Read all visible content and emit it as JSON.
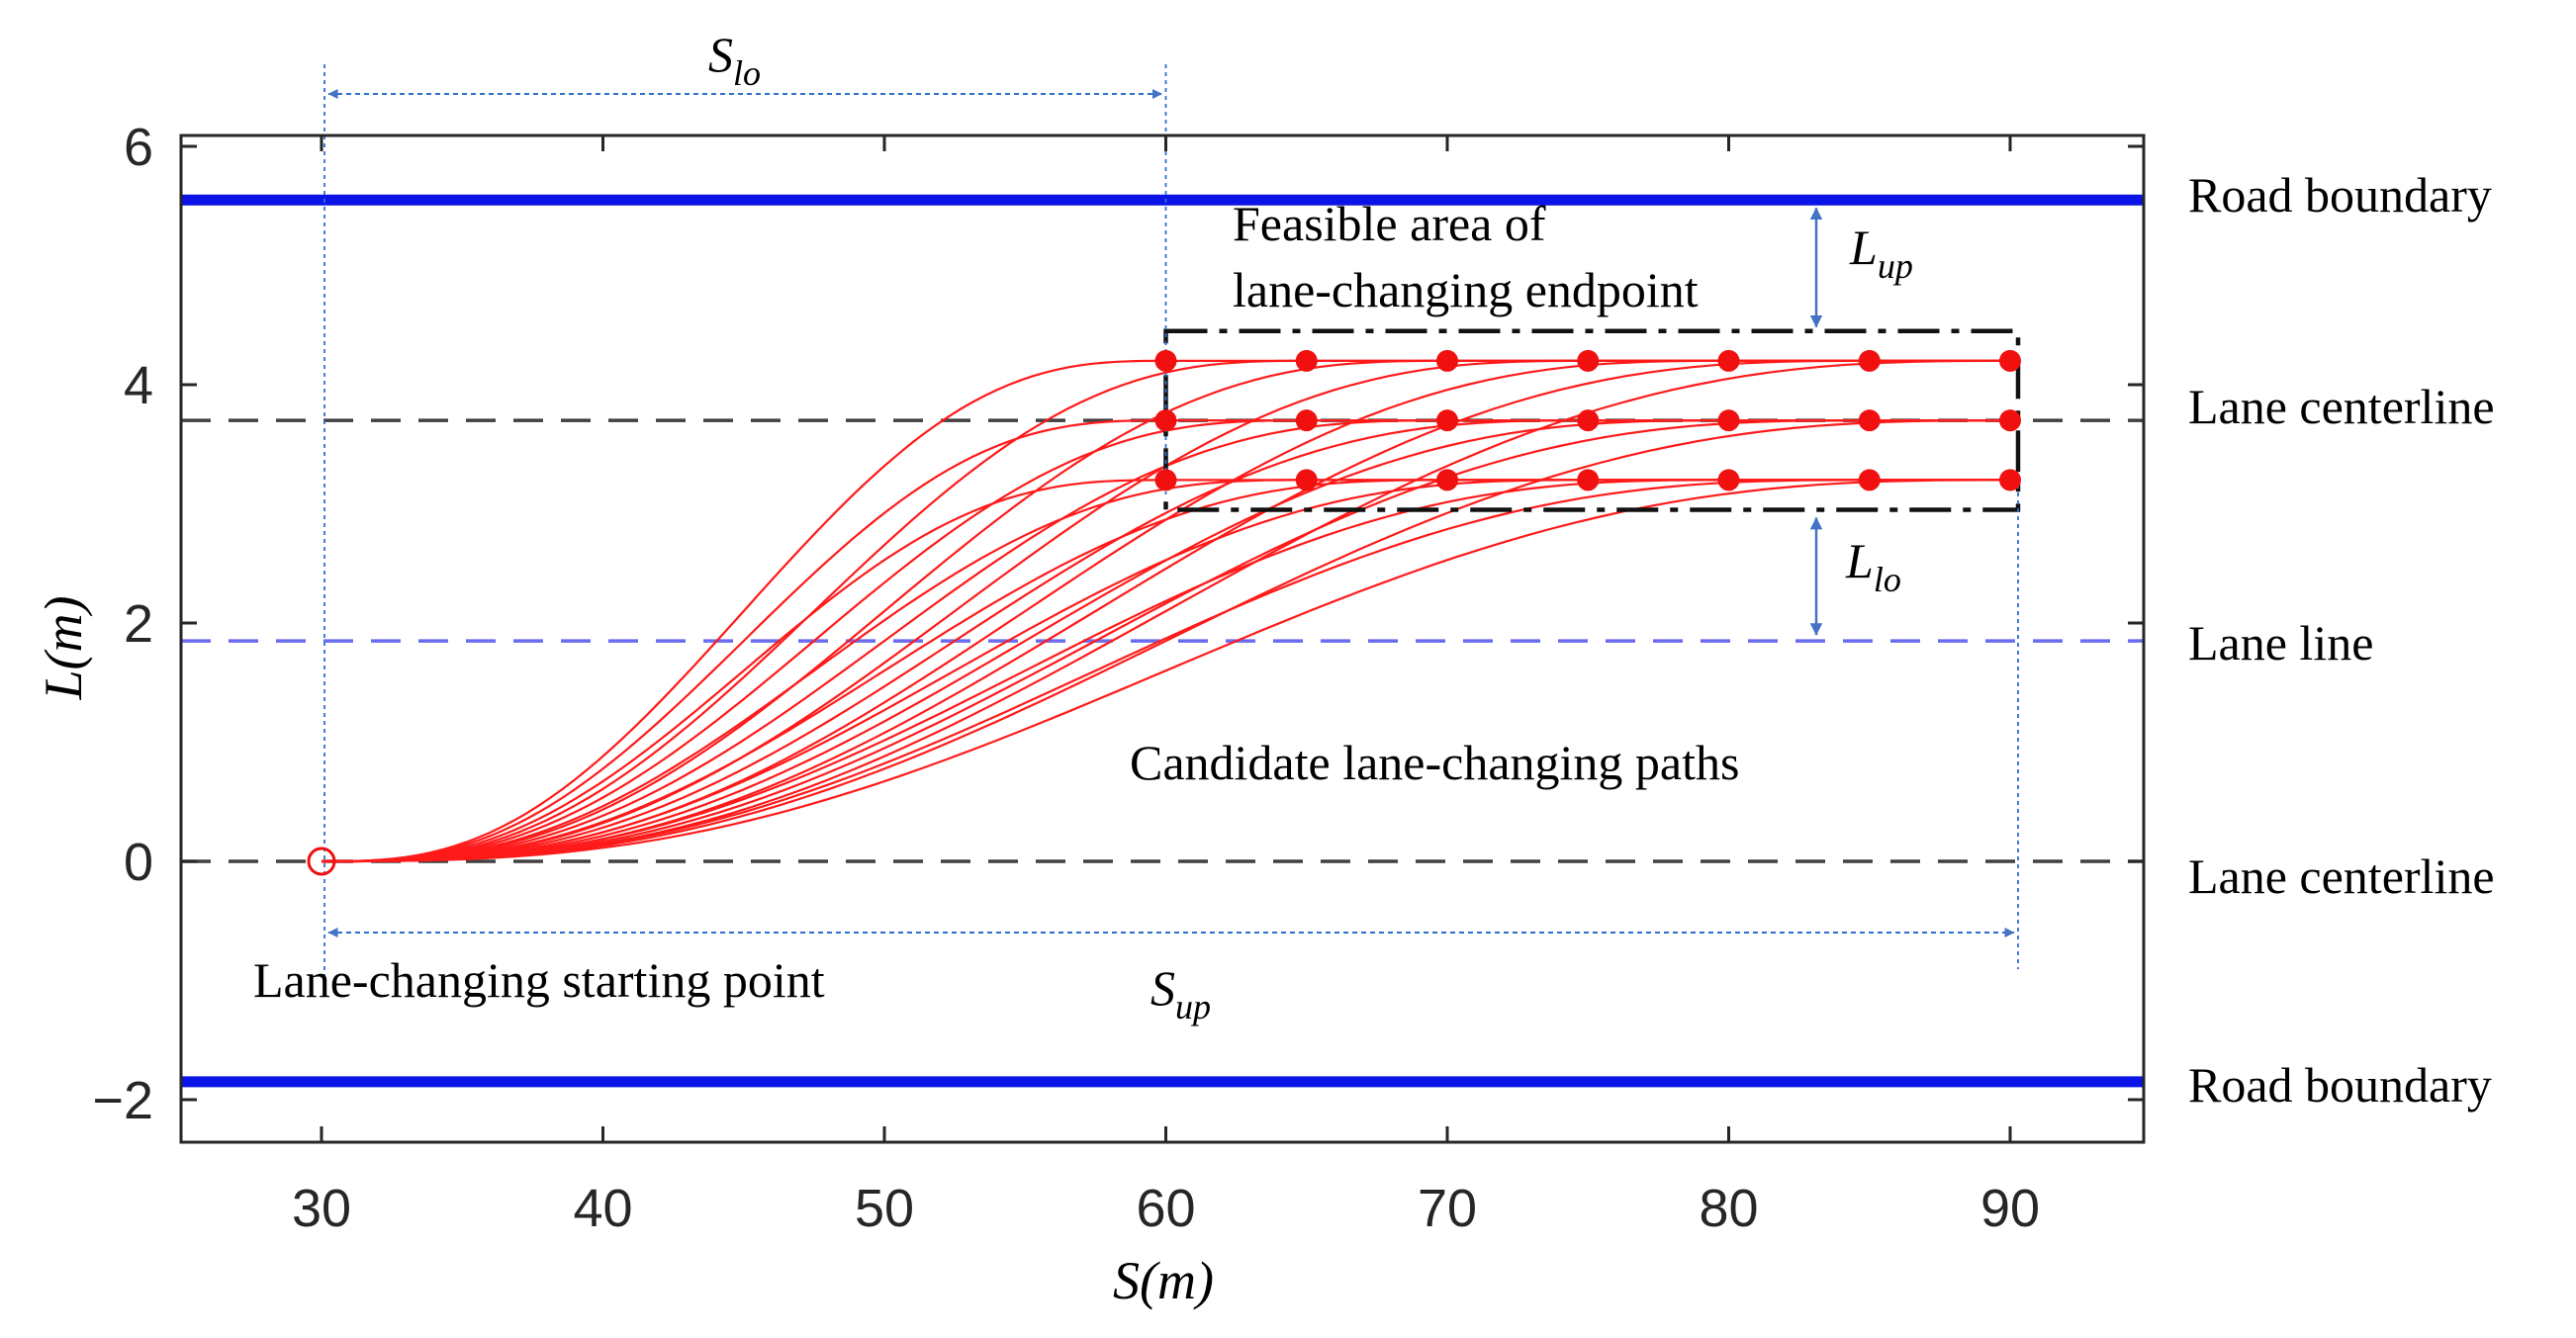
{
  "chart_data": {
    "type": "line",
    "xlabel": "S(m)",
    "ylabel": "L(m)",
    "xlim": [
      25,
      95
    ],
    "ylim": [
      -2.3,
      6.3
    ],
    "xticks": [
      30,
      40,
      50,
      60,
      70,
      80,
      90
    ],
    "yticks": [
      6,
      4,
      2,
      0,
      -2
    ],
    "xtick_labels": [
      "30",
      "40",
      "50",
      "60",
      "70",
      "80",
      "90"
    ],
    "ytick_labels": [
      "6",
      "4",
      "2",
      "0",
      "−2"
    ],
    "reference_lines": [
      {
        "name": "Road boundary",
        "y": 5.55,
        "style": "solid",
        "color": "#0a14e6"
      },
      {
        "name": "Lane centerline",
        "y": 3.7,
        "style": "dashed",
        "color": "#404040"
      },
      {
        "name": "Lane line",
        "y": 1.85,
        "style": "dashed",
        "color": "#6b6bf0"
      },
      {
        "name": "Lane centerline",
        "y": 0,
        "style": "dashed",
        "color": "#404040"
      },
      {
        "name": "Road boundary",
        "y": -1.85,
        "style": "solid",
        "color": "#0a14e6"
      }
    ],
    "start_point": {
      "s": 30,
      "l": 0,
      "label": "Lane-changing starting point"
    },
    "endpoints": {
      "s": [
        60,
        65,
        70,
        75,
        80,
        85,
        90
      ],
      "l": [
        4.2,
        3.7,
        3.2
      ]
    },
    "paths_label": "Candidate lane-changing paths",
    "feasible_area": {
      "label_line1": "Feasible area of",
      "label_line2": "lane-changing endpoint",
      "s_range": [
        60,
        90
      ],
      "l_range": [
        2.95,
        4.45
      ]
    },
    "dimensions": {
      "S_lo": {
        "base": "S",
        "sub": "lo",
        "from": 30,
        "to": 60
      },
      "S_up": {
        "base": "S",
        "sub": "up",
        "from": 30,
        "to": 90
      },
      "L_up": {
        "base": "L",
        "sub": "up"
      },
      "L_lo": {
        "base": "L",
        "sub": "lo"
      }
    },
    "colors": {
      "path": "#ff1a1a",
      "point": "#f01010",
      "axis": "#262626",
      "box": "#111111",
      "dim_line": "#2e6fd0",
      "arrow": "#4472c4"
    }
  }
}
